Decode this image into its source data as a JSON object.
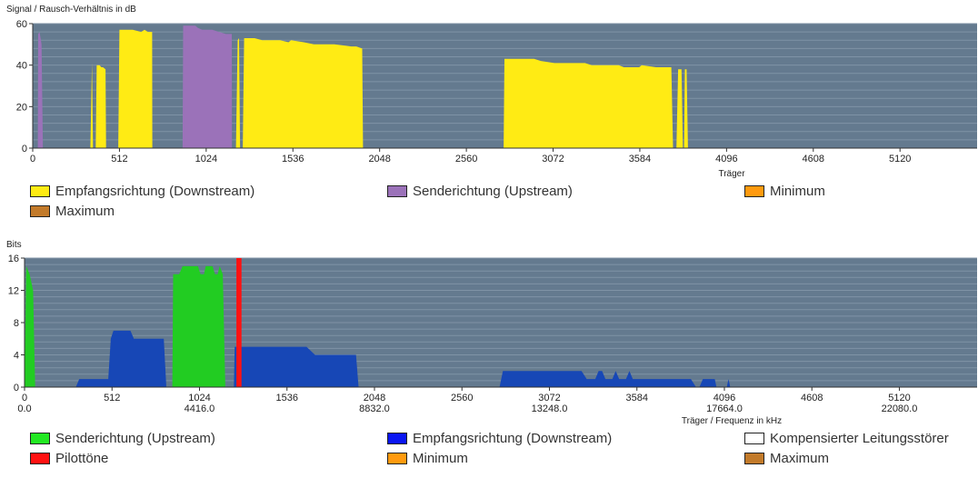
{
  "chart_data": [
    {
      "type": "area",
      "title": "Signal / Rausch-Verhältnis in dB",
      "xlabel": "Träger",
      "ylabel": "",
      "xlim": [
        0,
        5575
      ],
      "ylim": [
        0,
        60
      ],
      "x_ticks": [
        0,
        512,
        1024,
        1536,
        2048,
        2560,
        3072,
        3584,
        4096,
        4608,
        5120
      ],
      "y_ticks": [
        0,
        20,
        40,
        60
      ],
      "grid": "horizontal",
      "background": "#647a8f",
      "series": [
        {
          "name": "Empfangsrichtung (Downstream)",
          "color": "#ffeb14",
          "points": [
            [
              340,
              0
            ],
            [
              350,
              41
            ],
            [
              356,
              0
            ],
            [
              372,
              0
            ],
            [
              378,
              40
            ],
            [
              395,
              40
            ],
            [
              405,
              39
            ],
            [
              415,
              39
            ],
            [
              430,
              38
            ],
            [
              433,
              0
            ],
            [
              505,
              0
            ],
            [
              512,
              57
            ],
            [
              540,
              57
            ],
            [
              567,
              57
            ],
            [
              590,
              57
            ],
            [
              640,
              56
            ],
            [
              660,
              57
            ],
            [
              680,
              56
            ],
            [
              700,
              56
            ],
            [
              705,
              56
            ],
            [
              706,
              0
            ],
            [
              1200,
              0
            ],
            [
              1210,
              52
            ],
            [
              1218,
              53
            ],
            [
              1224,
              0
            ],
            [
              1240,
              0
            ],
            [
              1248,
              53
            ],
            [
              1310,
              53
            ],
            [
              1355,
              52
            ],
            [
              1460,
              52
            ],
            [
              1510,
              51
            ],
            [
              1525,
              52
            ],
            [
              1600,
              51
            ],
            [
              1660,
              50
            ],
            [
              1780,
              50
            ],
            [
              1880,
              49
            ],
            [
              1910,
              49
            ],
            [
              1945,
              48
            ],
            [
              1950,
              0
            ],
            [
              2780,
              0
            ],
            [
              2785,
              43
            ],
            [
              2960,
              43
            ],
            [
              3000,
              42
            ],
            [
              3080,
              41
            ],
            [
              3260,
              41
            ],
            [
              3300,
              40
            ],
            [
              3460,
              40
            ],
            [
              3490,
              39
            ],
            [
              3580,
              39
            ],
            [
              3595,
              40
            ],
            [
              3680,
              39
            ],
            [
              3760,
              39
            ],
            [
              3770,
              39
            ],
            [
              3780,
              0
            ],
            [
              3800,
              0
            ],
            [
              3810,
              38
            ],
            [
              3830,
              38
            ],
            [
              3838,
              0
            ],
            [
              3845,
              0
            ],
            [
              3850,
              38
            ],
            [
              3860,
              38
            ],
            [
              3868,
              0
            ]
          ]
        },
        {
          "name": "Sendericht ung (Upstream)",
          "color": "#9b72b9",
          "points": [
            [
              30,
              0
            ],
            [
              32,
              55
            ],
            [
              40,
              56
            ],
            [
              52,
              50
            ],
            [
              60,
              0
            ],
            [
              885,
              0
            ],
            [
              888,
              59
            ],
            [
              960,
              59
            ],
            [
              975,
              58
            ],
            [
              1000,
              57
            ],
            [
              1060,
              57
            ],
            [
              1100,
              56
            ],
            [
              1140,
              55
            ],
            [
              1175,
              55
            ],
            [
              1176,
              0
            ]
          ]
        }
      ],
      "legend": [
        "Empfangsrichtung (Downstream)",
        "Senderichtung (Upstream)",
        "Minimum",
        "Maximum"
      ]
    },
    {
      "type": "area",
      "title": "Bits",
      "xlabel": "Träger / Frequenz in kHz",
      "ylabel": "Bits",
      "xlim": [
        0,
        5575
      ],
      "ylim": [
        0,
        16
      ],
      "x_ticks": [
        0,
        512,
        1024,
        1536,
        2048,
        2560,
        3072,
        3584,
        4096,
        4608,
        5120
      ],
      "x_freq_labels": {
        "0": "0.0",
        "1024": "4416.0",
        "2048": "8832.0",
        "3072": "13248.0",
        "4096": "17664.0",
        "5120": "22080.0"
      },
      "y_ticks": [
        0,
        4,
        8,
        12,
        16
      ],
      "grid": "horizontal",
      "background": "#647a8f",
      "series": [
        {
          "name": "Senderichtung (Upstream)",
          "color": "#22cc22",
          "points": [
            [
              0,
              0
            ],
            [
              10,
              15
            ],
            [
              30,
              14
            ],
            [
              50,
              12
            ],
            [
              62,
              0
            ],
            [
              865,
              0
            ],
            [
              870,
              14
            ],
            [
              905,
              14
            ],
            [
              925,
              15
            ],
            [
              1015,
              15
            ],
            [
              1030,
              14
            ],
            [
              1050,
              14
            ],
            [
              1060,
              15
            ],
            [
              1100,
              15
            ],
            [
              1115,
              14
            ],
            [
              1130,
              14
            ],
            [
              1142,
              15
            ],
            [
              1160,
              14
            ],
            [
              1175,
              0
            ]
          ]
        },
        {
          "name": "Empfangsrichtung (Downstream)",
          "color": "#1747b6",
          "points": [
            [
              300,
              0
            ],
            [
              320,
              1
            ],
            [
              490,
              1
            ],
            [
              505,
              6
            ],
            [
              520,
              7
            ],
            [
              620,
              7
            ],
            [
              640,
              6
            ],
            [
              815,
              6
            ],
            [
              830,
              0
            ],
            [
              1225,
              0
            ],
            [
              1230,
              5
            ],
            [
              1650,
              5
            ],
            [
              1700,
              4
            ],
            [
              1940,
              4
            ],
            [
              1955,
              0
            ],
            [
              2780,
              0
            ],
            [
              2800,
              2
            ],
            [
              3260,
              2
            ],
            [
              3290,
              1
            ],
            [
              3340,
              1
            ],
            [
              3360,
              2
            ],
            [
              3380,
              2
            ],
            [
              3400,
              1
            ],
            [
              3440,
              1
            ],
            [
              3460,
              2
            ],
            [
              3480,
              1
            ],
            [
              3520,
              1
            ],
            [
              3540,
              2
            ],
            [
              3560,
              1
            ],
            [
              3900,
              1
            ],
            [
              3930,
              0
            ],
            [
              3950,
              0
            ],
            [
              3970,
              1
            ],
            [
              4040,
              1
            ],
            [
              4050,
              0
            ],
            [
              4110,
              0
            ],
            [
              4120,
              1
            ],
            [
              4130,
              0
            ]
          ]
        },
        {
          "name": "Pilottöne",
          "color": "#ff1111",
          "points": [
            [
              1240,
              0
            ],
            [
              1240,
              16
            ],
            [
              1270,
              16
            ],
            [
              1270,
              0
            ]
          ]
        }
      ],
      "legend": [
        "Senderichtung (Upstream)",
        "Empfangsrichtung (Downstream)",
        "Kompensierter Leitungsstörer",
        "Pilottöne",
        "Minimum",
        "Maximum"
      ]
    }
  ],
  "legend1": [
    {
      "label": "Empfangsrichtung (Downstream)",
      "color": "#ffeb14"
    },
    {
      "label": "Senderichtung (Upstream)",
      "color": "#9b72b9"
    },
    {
      "label": "Minimum",
      "color": "#ff9a0f"
    },
    {
      "label": "Maximum",
      "color": "#c27a2a"
    }
  ],
  "legend2": [
    {
      "label": "Senderichtung (Upstream)",
      "color": "#22e822"
    },
    {
      "label": "Empfangsrichtung (Downstream)",
      "color": "#0a16f2"
    },
    {
      "label": "Kompensierter Leitungsstörer",
      "color": "#ffffff"
    },
    {
      "label": "Pilottöne",
      "color": "#ff1111"
    },
    {
      "label": "Minimum",
      "color": "#ff9a0f"
    },
    {
      "label": "Maximum",
      "color": "#c27a2a"
    }
  ]
}
